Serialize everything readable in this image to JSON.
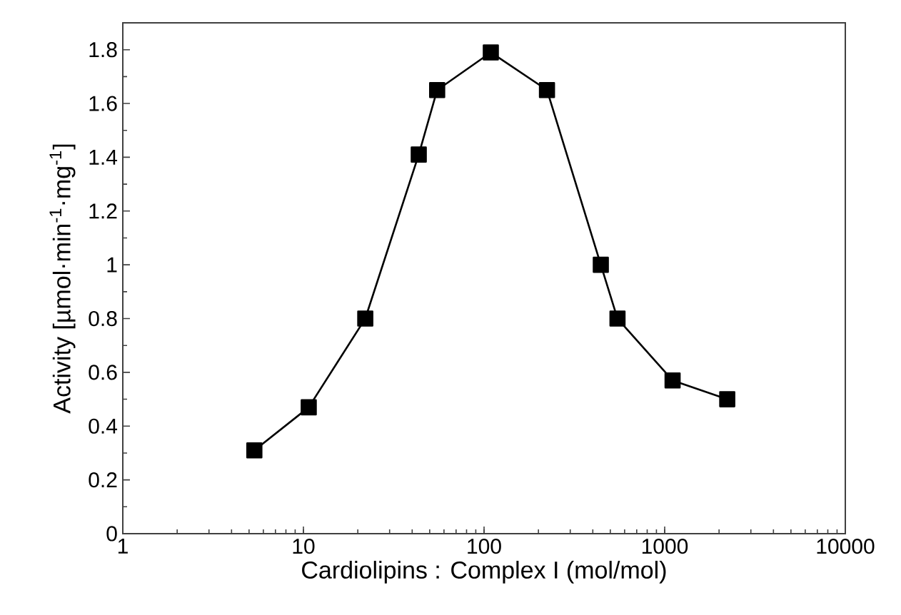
{
  "chart_data": {
    "type": "line",
    "xlabel": "Cardiolipins : Complex I (mol/mol)",
    "ylabel": "Activity [µmol·min$^{-1}$·mg$^{-1}$]",
    "x": [
      5.35,
      10.7,
      22,
      43.5,
      55,
      109,
      223,
      443,
      548,
      1106,
      2220
    ],
    "values": [
      0.31,
      0.47,
      0.8,
      1.41,
      1.65,
      1.79,
      1.65,
      1.0,
      0.8,
      0.57,
      0.5
    ],
    "color": "#000000",
    "marker": "square",
    "line_style": "solid",
    "log": "x",
    "xlim": [
      1,
      10000
    ],
    "ylim": [
      0,
      1.9
    ],
    "xticks": [
      1,
      10,
      100,
      1000,
      10000
    ],
    "yticks": [
      0,
      0.2,
      0.4,
      0.6,
      0.8,
      {
        "value": 1,
        "label": "1"
      },
      1.2,
      1.4,
      1.6,
      1.8
    ]
  }
}
